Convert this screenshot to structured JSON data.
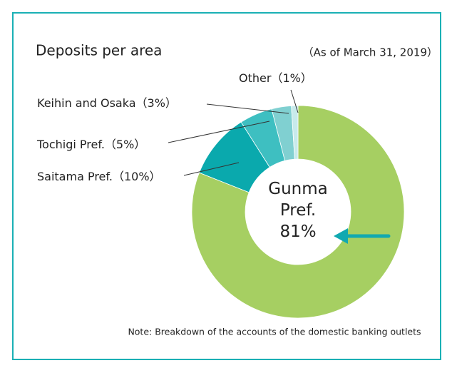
{
  "chart_data": {
    "type": "pie",
    "donut": true,
    "title": "Deposits per area",
    "subtitle": "（As of March 31, 2019）",
    "note": "Note: Breakdown of the accounts of the domestic banking outlets",
    "categories": [
      "Gunma Pref.",
      "Saitama Pref.",
      "Tochigi Pref.",
      "Keihin and Osaka",
      "Other"
    ],
    "values": [
      81,
      10,
      5,
      3,
      1
    ],
    "value_labels": [
      "81%",
      "（10%）",
      "（5%）",
      "（3%）",
      "（1%）"
    ],
    "colors": [
      "#a6cf62",
      "#0aa9ad",
      "#3ebfc1",
      "#80d0d1",
      "#c8eaeb"
    ]
  }
}
